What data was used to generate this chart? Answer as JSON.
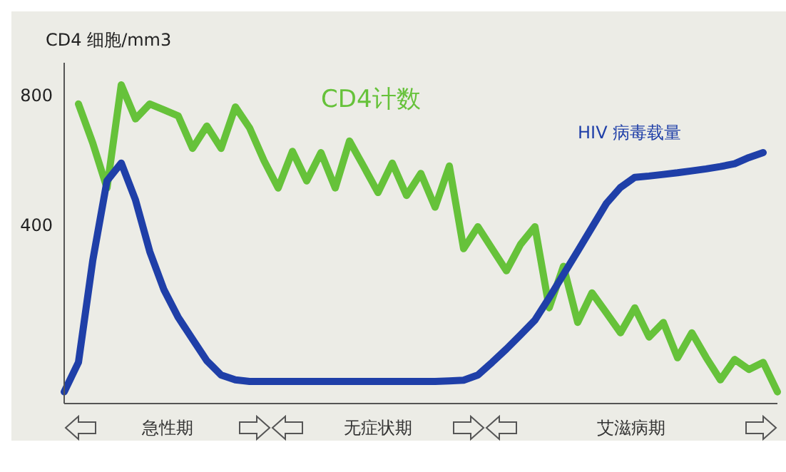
{
  "chart_data": {
    "type": "line",
    "ylabel": "CD4 细胞/mm3",
    "ylim": [
      -150,
      900
    ],
    "yticks": [
      400,
      800
    ],
    "tick_labels": "y",
    "legend": false,
    "marker": "none",
    "annotations": [
      "急性期",
      "无症状期",
      "艾滋病期"
    ],
    "categories": [
      null,
      null,
      null,
      null,
      null,
      null,
      null,
      null,
      null,
      null,
      null,
      null,
      null,
      null,
      null,
      null,
      null,
      null,
      null,
      null,
      null,
      null,
      null,
      null,
      null,
      null,
      null,
      null,
      null,
      null,
      null,
      null,
      null,
      null,
      null,
      null,
      null,
      null,
      null,
      null,
      null,
      null,
      null,
      null,
      null,
      null,
      null,
      null,
      null,
      null,
      null
    ],
    "series": [
      {
        "name": "CD4计数",
        "color": "#66c23a",
        "values": [
          null,
          773,
          653,
          514,
          832,
          727,
          773,
          755,
          736,
          636,
          705,
          636,
          764,
          699,
          599,
          514,
          627,
          536,
          623,
          514,
          659,
          580,
          500,
          591,
          491,
          559,
          455,
          582,
          327,
          395,
          327,
          259,
          341,
          395,
          145,
          273,
          100,
          191,
          130,
          68,
          145,
          55,
          100,
          -9,
          68,
          -8,
          -77,
          -14,
          -45,
          -23,
          -114
        ]
      },
      {
        "name": "HIV 病毒载量",
        "color": "#1f3fa8",
        "values": [
          -114,
          -23,
          290,
          536,
          591,
          477,
          318,
          200,
          115,
          48,
          -18,
          -62,
          -77,
          -82,
          -82,
          -82,
          -82,
          -82,
          -82,
          -82,
          -82,
          -82,
          -82,
          -82,
          -82,
          -82,
          -82,
          -80,
          -78,
          -62,
          -23,
          18,
          62,
          107,
          176,
          248,
          320,
          393,
          466,
          516,
          547,
          551,
          556,
          561,
          567,
          573,
          580,
          589,
          608,
          623,
          null
        ]
      }
    ]
  }
}
